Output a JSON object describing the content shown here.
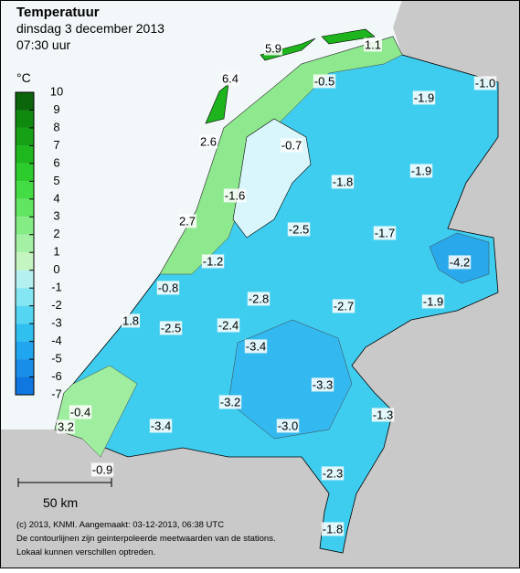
{
  "header": {
    "title": "Temperatuur",
    "date": "dinsdag 3 december 2013",
    "time": "07:30 uur"
  },
  "legend": {
    "unit": "°C",
    "ticks": [
      10,
      9,
      8,
      7,
      6,
      5,
      4,
      3,
      2,
      1,
      0,
      -1,
      -2,
      -3,
      -4,
      -5,
      -6,
      -7
    ],
    "colors": [
      "#0b650b",
      "#0f8a0f",
      "#16a016",
      "#1eb81e",
      "#2ccc2c",
      "#44dc44",
      "#62e662",
      "#84ec84",
      "#a4f0a4",
      "#c4f4c0",
      "#b4f0f0",
      "#84e6f2",
      "#54d6f2",
      "#30c0f0",
      "#20a6ee",
      "#188ee8",
      "#1076e0"
    ]
  },
  "stations": [
    "5.9",
    "1.1",
    "6.4",
    "-0.5",
    "-1.0",
    "-1.9",
    "2.6",
    "-0.7",
    "-1.9",
    "-1.8",
    "-1.6",
    "2.7",
    "-2.5",
    "-1.7",
    "-4.2",
    "-1.2",
    "-0.8",
    "-2.8",
    "-2.7",
    "-1.9",
    "1.8",
    "-2.5",
    "-2.4",
    "-3.4",
    "-3.3",
    "-3.2",
    "-1.3",
    "-0.4",
    "-3.4",
    "-3.0",
    "3.2",
    "-0.9",
    "-2.3",
    "-1.8"
  ],
  "scale": "50 km",
  "footer": [
    "(c) 2013, KNMI. Aangemaakt: 03-12-2013, 06:38 UTC",
    "De contourlijnen zijn geinterpoleerde meetwaarden van de stations.",
    "Lokaal kunnen verschillen optreden."
  ]
}
